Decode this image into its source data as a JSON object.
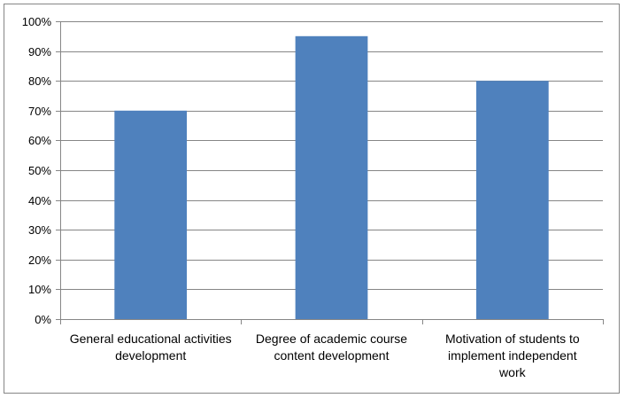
{
  "chart_data": {
    "type": "bar",
    "categories": [
      [
        "General educational activities",
        "development"
      ],
      [
        "Degree of academic course",
        "content development"
      ],
      [
        "Motivation of students to",
        "implement independent",
        "work"
      ]
    ],
    "values": [
      70,
      95,
      80
    ],
    "ylim": [
      0,
      100
    ],
    "yticks": [
      0,
      10,
      20,
      30,
      40,
      50,
      60,
      70,
      80,
      90,
      100
    ],
    "ytick_labels": [
      "0%",
      "10%",
      "20%",
      "30%",
      "40%",
      "50%",
      "60%",
      "70%",
      "80%",
      "90%",
      "100%"
    ],
    "bar_color": "#4f81bd",
    "grid": true,
    "legend": "none"
  }
}
